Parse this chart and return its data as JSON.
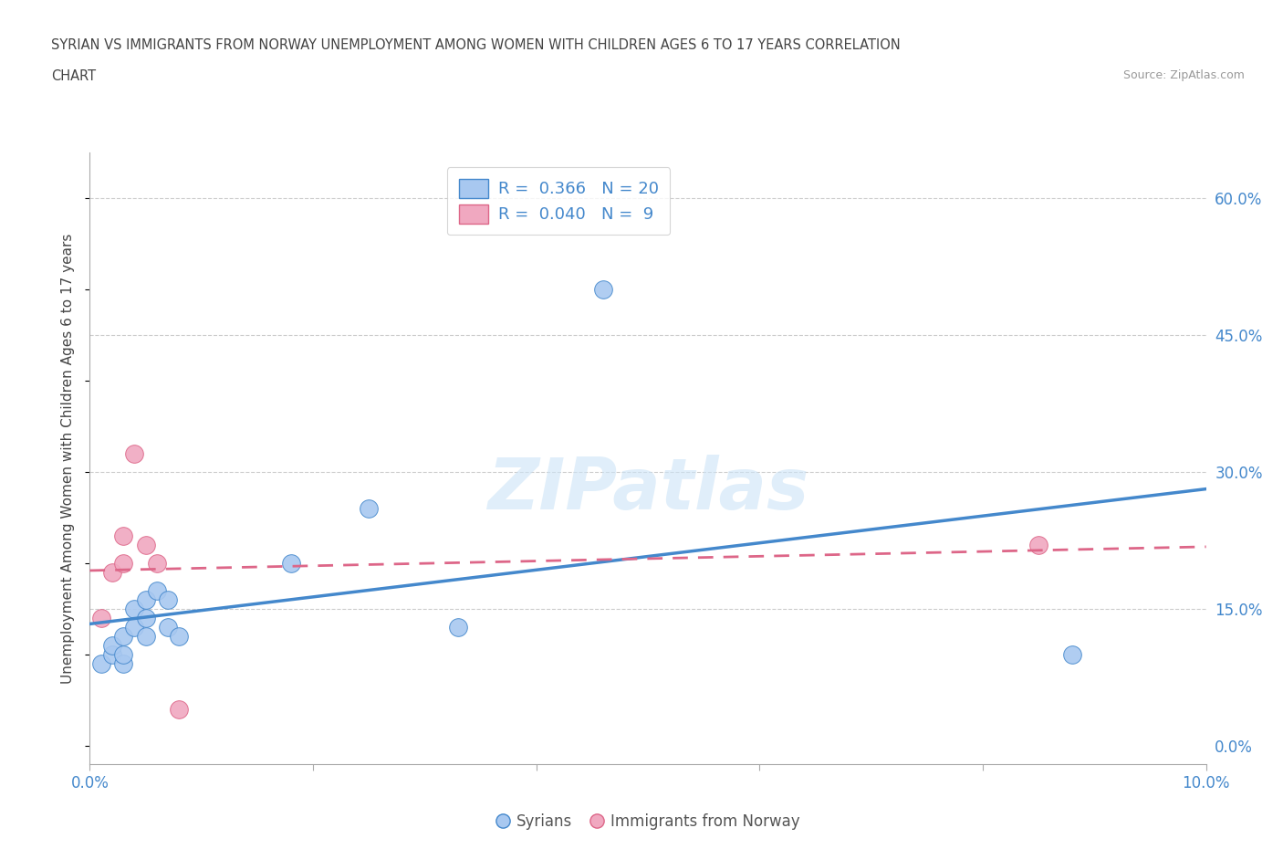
{
  "title_line1": "SYRIAN VS IMMIGRANTS FROM NORWAY UNEMPLOYMENT AMONG WOMEN WITH CHILDREN AGES 6 TO 17 YEARS CORRELATION",
  "title_line2": "CHART",
  "source": "Source: ZipAtlas.com",
  "ylabel": "Unemployment Among Women with Children Ages 6 to 17 years",
  "xlim": [
    0.0,
    0.1
  ],
  "ylim": [
    -0.02,
    0.65
  ],
  "xticks": [
    0.0,
    0.02,
    0.04,
    0.06,
    0.08,
    0.1
  ],
  "xticklabels": [
    "0.0%",
    "",
    "",
    "",
    "",
    "10.0%"
  ],
  "yticks_right": [
    0.0,
    0.15,
    0.3,
    0.45,
    0.6
  ],
  "ytick_labels_right": [
    "0.0%",
    "15.0%",
    "30.0%",
    "45.0%",
    "60.0%"
  ],
  "grid_color": "#cccccc",
  "background_color": "#ffffff",
  "blue_color": "#a8c8f0",
  "pink_color": "#f0a8c0",
  "trend_blue": "#4488cc",
  "trend_pink": "#dd6688",
  "syrians_x": [
    0.001,
    0.002,
    0.002,
    0.003,
    0.003,
    0.003,
    0.004,
    0.004,
    0.005,
    0.005,
    0.005,
    0.006,
    0.007,
    0.007,
    0.008,
    0.018,
    0.025,
    0.033,
    0.046,
    0.088
  ],
  "syrians_y": [
    0.09,
    0.1,
    0.11,
    0.09,
    0.1,
    0.12,
    0.13,
    0.15,
    0.12,
    0.14,
    0.16,
    0.17,
    0.13,
    0.16,
    0.12,
    0.2,
    0.26,
    0.13,
    0.5,
    0.1
  ],
  "norway_x": [
    0.001,
    0.002,
    0.003,
    0.003,
    0.004,
    0.005,
    0.006,
    0.008,
    0.085
  ],
  "norway_y": [
    0.14,
    0.19,
    0.2,
    0.23,
    0.32,
    0.22,
    0.2,
    0.04,
    0.22
  ],
  "dot_size": 200
}
